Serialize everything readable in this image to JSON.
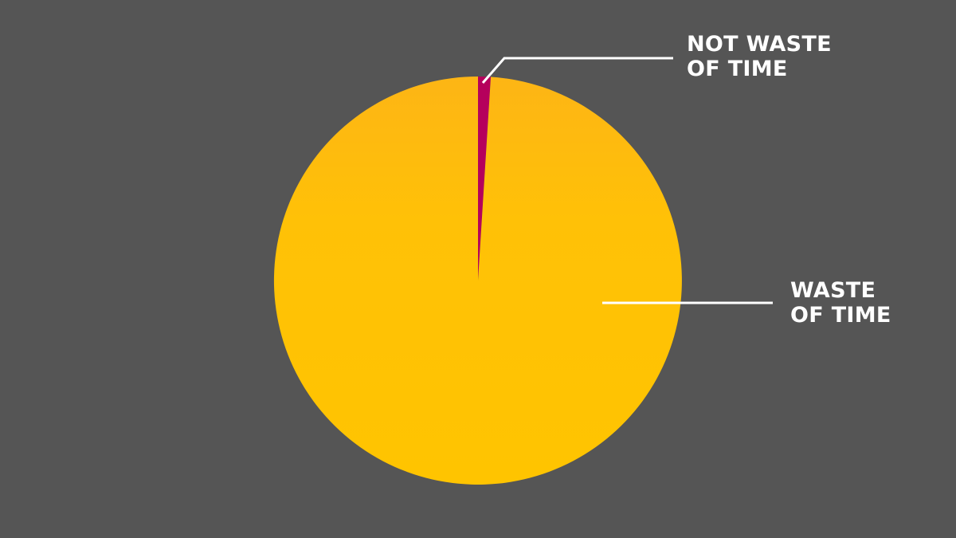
{
  "chart_data": {
    "type": "pie",
    "title": "",
    "slices": [
      {
        "label_lines": [
          [
            "NOT",
            " WASTE"
          ],
          [
            "OF TIME"
          ]
        ],
        "value": 1,
        "color": "#B5005C"
      },
      {
        "label_lines": [
          [
            "WASTE"
          ],
          [
            "OF TIME"
          ]
        ],
        "value": 99,
        "color": "#FFC107"
      }
    ]
  },
  "labels": {
    "not_waste": {
      "emphasis": "NOT",
      "rest": " WASTE",
      "line2": "OF TIME"
    },
    "waste": {
      "line1": "WASTE",
      "line2": "OF TIME"
    }
  },
  "colors": {
    "background": "#555555",
    "leader_line": "#FFFFFF",
    "text": "#FFFFFF"
  }
}
